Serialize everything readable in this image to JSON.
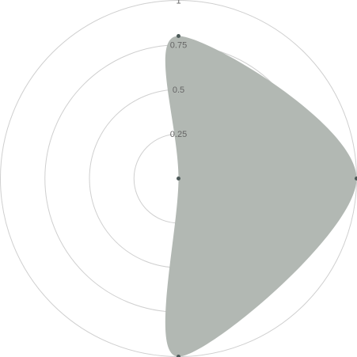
{
  "chart_data": {
    "type": "radar",
    "categories": [
      "",
      "",
      "",
      ""
    ],
    "values": [
      0.8,
      0,
      1,
      1
    ],
    "series": [
      {
        "values": [
          0.8,
          0,
          1,
          1
        ],
        "fill": "#b2b8b3",
        "point_color": "#4d5a59"
      }
    ],
    "radial_range": [
      0,
      1
    ],
    "radial_ticks": [
      {
        "value": 0.25,
        "label": "0.25"
      },
      {
        "value": 0.5,
        "label": "0.5"
      },
      {
        "value": 0.75,
        "label": "0.75"
      },
      {
        "value": 1,
        "label": "1"
      }
    ],
    "grid": true,
    "legend": "none",
    "title": "",
    "colors": {
      "grid": "#cfcfcf",
      "tick_label": "#666666",
      "background": "#ffffff"
    }
  }
}
